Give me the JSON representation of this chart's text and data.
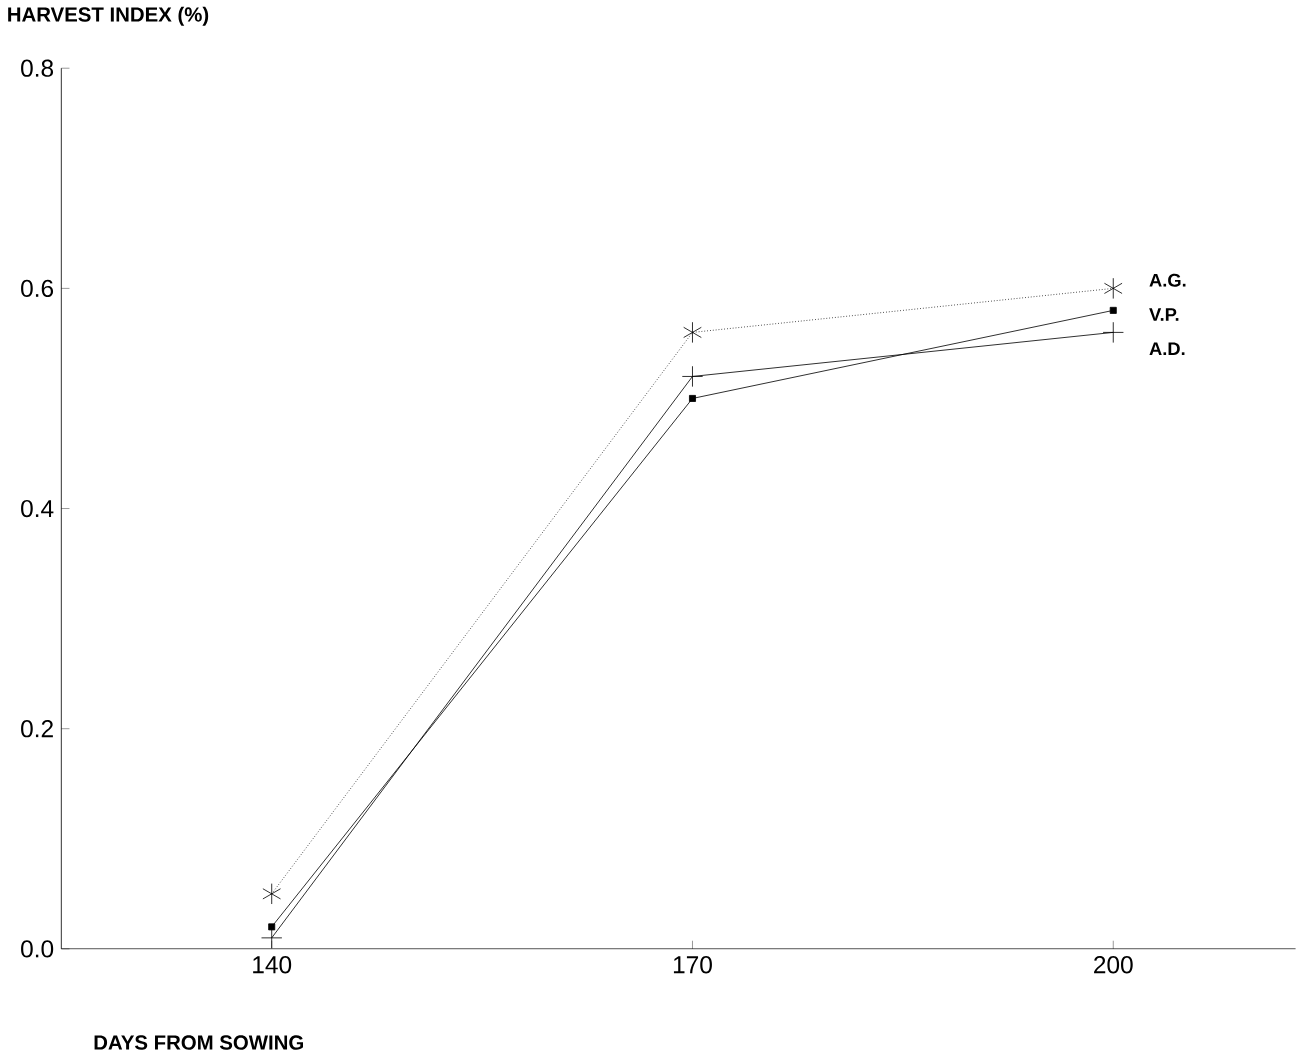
{
  "chart_data": {
    "type": "line",
    "xlabel": "DAYS FROM SOWING",
    "ylabel": "HARVEST INDEX (%)",
    "x": [
      140,
      170,
      200
    ],
    "series": [
      {
        "name": "A.G.",
        "color": "#000000",
        "values": [
          0.05,
          0.56,
          0.6
        ],
        "marker": "cross",
        "line_style": "dotted"
      },
      {
        "name": "V.P.",
        "color": "#000000",
        "values": [
          0.02,
          0.5,
          0.58
        ],
        "marker": "square",
        "line_style": "solid"
      },
      {
        "name": "A.D.",
        "color": "#000000",
        "values": [
          0.01,
          0.52,
          0.56
        ],
        "marker": "plus",
        "line_style": "solid"
      }
    ],
    "xlim": [
      125,
      213
    ],
    "ylim": [
      0,
      0.8
    ],
    "xticks": [
      140,
      170,
      200
    ],
    "yticks": [
      {
        "value": 0,
        "label": "0.0"
      },
      {
        "value": 0.2,
        "label": "0.2"
      },
      {
        "value": 0.4,
        "label": "0.4"
      },
      {
        "value": 0.6,
        "label": "0.6"
      },
      {
        "value": 0.8,
        "label": "0.8"
      }
    ],
    "legend": false,
    "grid": false
  }
}
